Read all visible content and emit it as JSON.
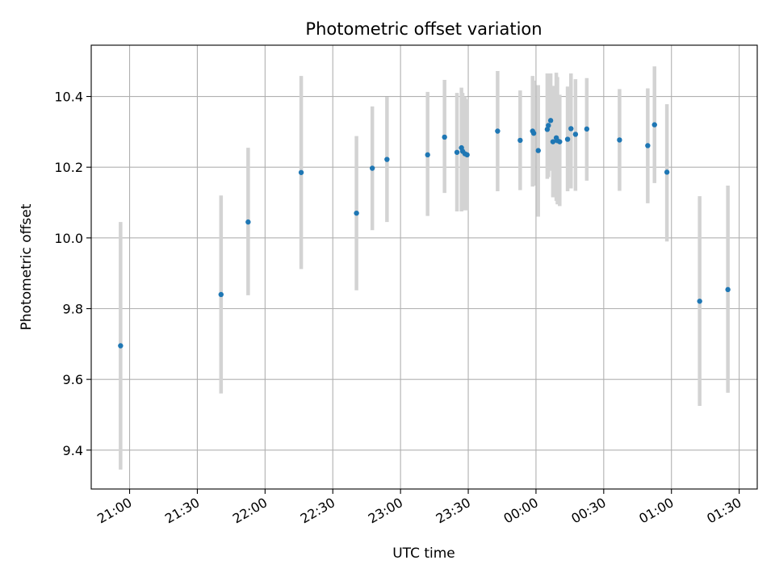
{
  "chart_data": {
    "type": "scatter",
    "title": "Photometric offset variation",
    "xlabel": "UTC time",
    "ylabel": "Photometric offset",
    "grid": true,
    "colors": {
      "points": "#1f77b4",
      "errorbars": "#d3d3d3",
      "grid": "#b0b0b0"
    },
    "x_tick_labels": [
      "21:00",
      "21:30",
      "22:00",
      "22:30",
      "23:00",
      "23:30",
      "00:00",
      "00:30",
      "01:00",
      "01:30"
    ],
    "y_tick_labels": [
      "9.4",
      "9.6",
      "9.8",
      "10.0",
      "10.2",
      "10.4"
    ],
    "x_ticks_minutes_since_2100": [
      0,
      30,
      60,
      90,
      120,
      150,
      180,
      210,
      240,
      270
    ],
    "y_ticks": [
      9.4,
      9.6,
      9.8,
      10.0,
      10.2,
      10.4
    ],
    "xlim_minutes_since_2100": [
      -17,
      278
    ],
    "ylim": [
      9.29,
      10.545
    ],
    "series": [
      {
        "points": [
          {
            "x": -4,
            "y": 9.695,
            "ylow": 9.345,
            "yhigh": 10.045
          },
          {
            "x": 40.5,
            "y": 9.84,
            "ylow": 9.56,
            "yhigh": 10.12
          },
          {
            "x": 52.5,
            "y": 10.045,
            "ylow": 9.838,
            "yhigh": 10.255
          },
          {
            "x": 76,
            "y": 10.185,
            "ylow": 9.912,
            "yhigh": 10.458
          },
          {
            "x": 100.5,
            "y": 10.07,
            "ylow": 9.852,
            "yhigh": 10.288
          },
          {
            "x": 107.5,
            "y": 10.197,
            "ylow": 10.022,
            "yhigh": 10.372
          },
          {
            "x": 114,
            "y": 10.222,
            "ylow": 10.045,
            "yhigh": 10.399
          },
          {
            "x": 132,
            "y": 10.235,
            "ylow": 10.062,
            "yhigh": 10.413
          },
          {
            "x": 139.5,
            "y": 10.285,
            "ylow": 10.127,
            "yhigh": 10.447
          },
          {
            "x": 145,
            "y": 10.242,
            "ylow": 10.075,
            "yhigh": 10.41
          },
          {
            "x": 147,
            "y": 10.255,
            "ylow": 10.075,
            "yhigh": 10.425
          },
          {
            "x": 147.5,
            "y": 10.245,
            "ylow": 10.078,
            "yhigh": 10.41
          },
          {
            "x": 148.5,
            "y": 10.238,
            "ylow": 10.078,
            "yhigh": 10.4
          },
          {
            "x": 149.5,
            "y": 10.235,
            "ylow": 10.078,
            "yhigh": 10.392
          },
          {
            "x": 163,
            "y": 10.302,
            "ylow": 10.132,
            "yhigh": 10.472
          },
          {
            "x": 173,
            "y": 10.276,
            "ylow": 10.135,
            "yhigh": 10.417
          },
          {
            "x": 178.5,
            "y": 10.302,
            "ylow": 10.145,
            "yhigh": 10.458
          },
          {
            "x": 179,
            "y": 10.296,
            "ylow": 10.148,
            "yhigh": 10.445
          },
          {
            "x": 181,
            "y": 10.247,
            "ylow": 10.06,
            "yhigh": 10.432
          },
          {
            "x": 185,
            "y": 10.307,
            "ylow": 10.167,
            "yhigh": 10.465
          },
          {
            "x": 185.5,
            "y": 10.318,
            "ylow": 10.172,
            "yhigh": 10.463
          },
          {
            "x": 186.5,
            "y": 10.332,
            "ylow": 10.19,
            "yhigh": 10.465
          },
          {
            "x": 187.5,
            "y": 10.272,
            "ylow": 10.115,
            "yhigh": 10.43
          },
          {
            "x": 189,
            "y": 10.283,
            "ylow": 10.105,
            "yhigh": 10.467
          },
          {
            "x": 189.5,
            "y": 10.275,
            "ylow": 10.095,
            "yhigh": 10.455
          },
          {
            "x": 190.5,
            "y": 10.272,
            "ylow": 10.09,
            "yhigh": 10.405
          },
          {
            "x": 194,
            "y": 10.279,
            "ylow": 10.132,
            "yhigh": 10.428
          },
          {
            "x": 195.5,
            "y": 10.309,
            "ylow": 10.14,
            "yhigh": 10.465
          },
          {
            "x": 197.5,
            "y": 10.293,
            "ylow": 10.133,
            "yhigh": 10.449
          },
          {
            "x": 202.5,
            "y": 10.308,
            "ylow": 10.162,
            "yhigh": 10.452
          },
          {
            "x": 217,
            "y": 10.277,
            "ylow": 10.133,
            "yhigh": 10.421
          },
          {
            "x": 229.5,
            "y": 10.261,
            "ylow": 10.098,
            "yhigh": 10.423
          },
          {
            "x": 232.5,
            "y": 10.32,
            "ylow": 10.155,
            "yhigh": 10.485
          },
          {
            "x": 238,
            "y": 10.186,
            "ylow": 9.99,
            "yhigh": 10.378
          },
          {
            "x": 252.5,
            "y": 9.821,
            "ylow": 9.525,
            "yhigh": 10.118
          },
          {
            "x": 265,
            "y": 9.854,
            "ylow": 9.562,
            "yhigh": 10.148
          }
        ]
      }
    ]
  }
}
